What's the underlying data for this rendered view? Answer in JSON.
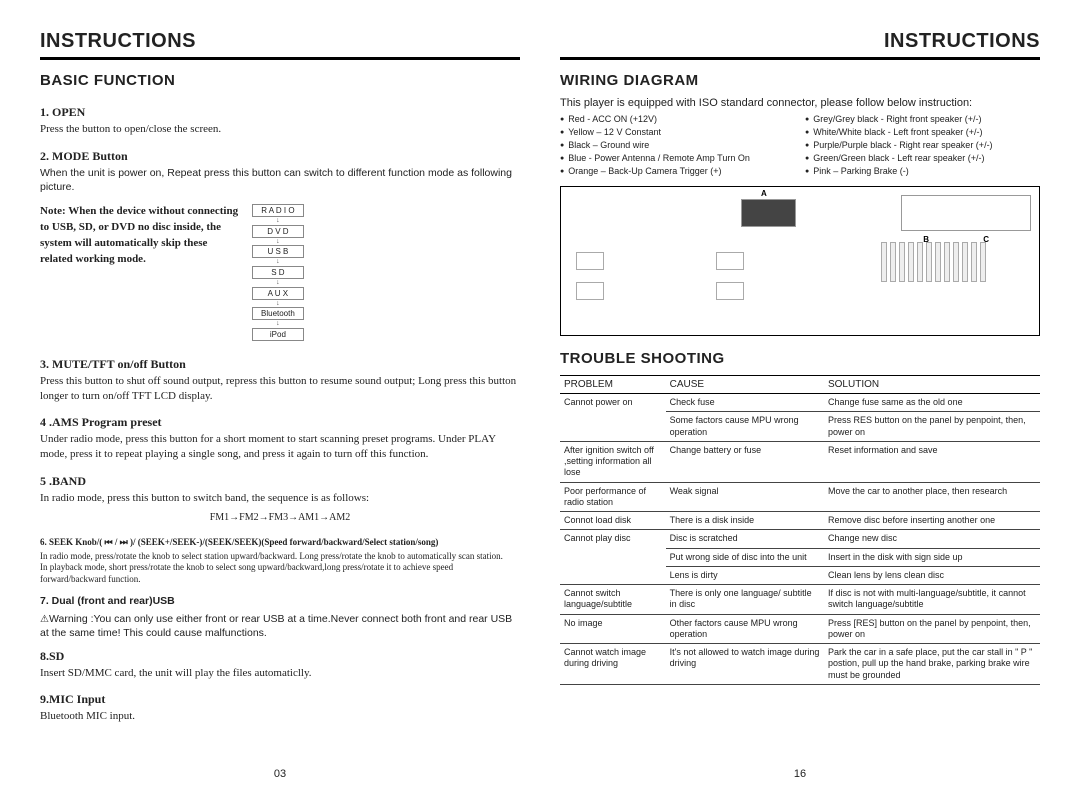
{
  "header": "INSTRUCTIONS",
  "left": {
    "section": "BASIC FUNCTION",
    "pageNum": "03",
    "open": {
      "h": "1. OPEN",
      "t": "Press the button to open/close the screen."
    },
    "mode": {
      "h": "2. MODE Button",
      "t": "When the unit is power on, Repeat press this button can switch to different function mode as following picture.",
      "note": "Note: When the device without connecting to USB, SD, or DVD no disc inside, the system will automatically skip these related working mode.",
      "ladder": [
        "R A D I O",
        "D V D",
        "U S B",
        "S D",
        "A U X",
        "Bluetooth",
        "iPod"
      ]
    },
    "mute": {
      "h": "3. MUTE/TFT  on/off Button",
      "t": "Press this button to shut off sound output, repress this button to resume sound output; Long press this button longer to turn on/off TFT LCD display."
    },
    "ams": {
      "h": "4 .AMS Program preset",
      "t": "Under radio mode, press this button for a short moment to start scanning preset programs. Under PLAY mode, press it to repeat playing a single song, and press it again to turn off this function."
    },
    "band": {
      "h": "5 .BAND",
      "t": "In radio mode, press this button to switch band,  the sequence  is as follows:",
      "seq": "FM1→FM2→FM3→AM1→AM2"
    },
    "seek": {
      "h": "6. SEEK Knob/( ⏮ / ⏭ )/ (SEEK+/SEEK-)/(SEEK/SEEK)(Speed forward/backward/Select station/song)",
      "t1": "In radio mode, press/rotate the knob to select station upward/backward. Long press/rotate the knob to automatically scan station.",
      "t2": "In playback mode, short press/rotate the knob to select song upward/backward,long press/rotate it to achieve speed forward/backward function."
    },
    "dual": {
      "h": "7. Dual (front and rear)USB",
      "warn": "Warning :You can only use either front or rear USB at a time.Never connect both front and rear USB at the same time! This could cause malfunctions."
    },
    "sd": {
      "h": "8.SD",
      "t": "Insert SD/MMC card, the unit will play the files automaticlly."
    },
    "mic": {
      "h": "9.MIC Input",
      "t": "Bluetooth MIC input."
    }
  },
  "right": {
    "pageNum": "16",
    "wiring": {
      "title": "WIRING DIAGRAM",
      "intro": "This player is equipped with ISO standard connector, please follow below instruction:",
      "colA": [
        "Red - ACC ON (+12V)",
        "Yellow – 12 V Constant",
        "Black – Ground wire",
        "Blue - Power Antenna / Remote Amp Turn On",
        "Orange – Back-Up Camera Trigger (+)"
      ],
      "colB": [
        "Grey/Grey black - Right front speaker (+/-)",
        "White/White black - Left front speaker (+/-)",
        "Purple/Purple black - Right rear speaker (+/-)",
        "Green/Green black - Left rear speaker (+/-)",
        "Pink – Parking Brake (-)"
      ]
    },
    "trouble": {
      "title": "TROUBLE SHOOTING",
      "headers": [
        "PROBLEM",
        "CAUSE",
        "SOLUTION"
      ],
      "rows": [
        {
          "p": "Cannot power on",
          "c": "Check fuse",
          "s": "Change fuse same as the old one",
          "mergeP": 2
        },
        {
          "p": "",
          "c": "Some factors cause MPU wrong operation",
          "s": "Press RES button on the panel by penpoint, then, power on"
        },
        {
          "p": "After ignition switch off ,setting information all lose",
          "c": "Change battery or fuse",
          "s": "Reset  information  and  save"
        },
        {
          "p": "Poor  performance of radio station",
          "c": "Weak signal",
          "s": "Move the car to another place, then research"
        },
        {
          "p": "Connot load disk",
          "c": "There is a disk inside",
          "s": "Remove disc before inserting another one"
        },
        {
          "p": "Cannot play disc",
          "c": "Disc is scratched",
          "s": "Change new disc",
          "mergeP": 3
        },
        {
          "p": "",
          "c": "Put wrong side of disc into the unit",
          "s": "Insert in the disk with sign side up"
        },
        {
          "p": "",
          "c": "Lens is dirty",
          "s": "Clean lens by lens clean disc"
        },
        {
          "p": "Cannot switch language/subtitle",
          "c": "There is only one language/ subtitle in disc",
          "s": "If disc is not with multi-language/subtitle, it cannot switch language/subtitle"
        },
        {
          "p": "No image",
          "c": "Other factors cause MPU wrong operation",
          "s": "Press [RES] button on the panel by penpoint, then, power on"
        },
        {
          "p": "Cannot watch image  during driving",
          "c": "It's not allowed to watch image during driving",
          "s": "Park the car in a safe place,  put the car stall in \" P \" postion, pull up the hand brake, parking brake wire must be grounded"
        }
      ]
    }
  }
}
